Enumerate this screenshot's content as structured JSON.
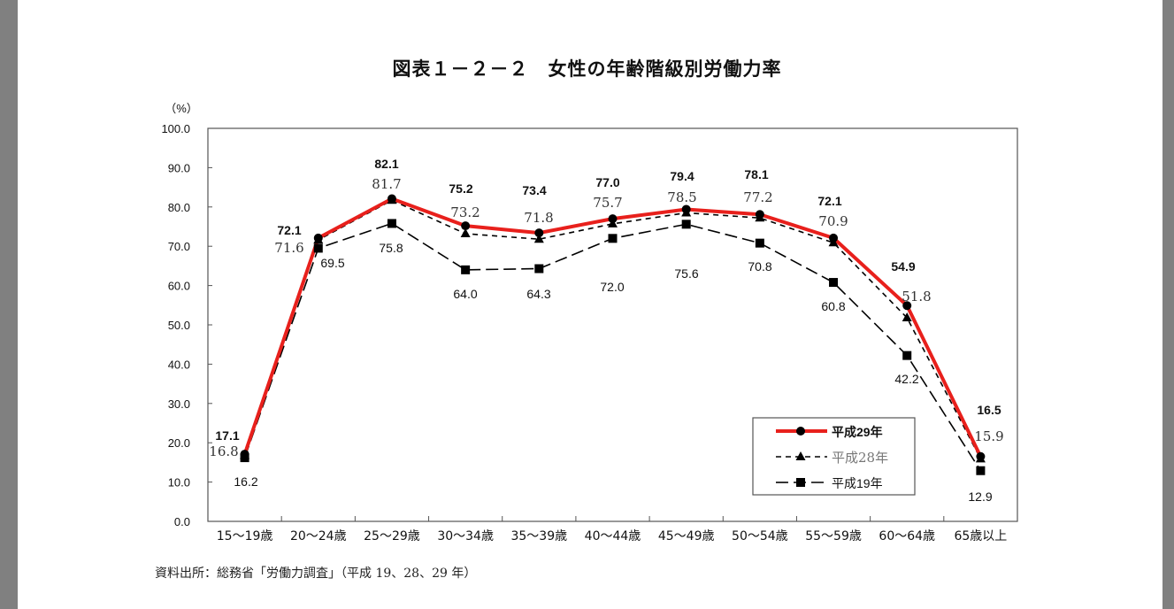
{
  "chart_data": {
    "type": "line",
    "title": "図表１－２－２　女性の年齢階級別労働力率",
    "ylabel": "（%）",
    "xlabel": "",
    "ylim": [
      0,
      100
    ],
    "yticks": [
      "0.0",
      "10.0",
      "20.0",
      "30.0",
      "40.0",
      "50.0",
      "60.0",
      "70.0",
      "80.0",
      "90.0",
      "100.0"
    ],
    "categories": [
      "15～19歳",
      "20～24歳",
      "25～29歳",
      "30～34歳",
      "35～39歳",
      "40～44歳",
      "45～49歳",
      "50～54歳",
      "55～59歳",
      "60～64歳",
      "65歳以上"
    ],
    "series": [
      {
        "name": "平成29年",
        "color": "#e8201c",
        "values": [
          17.1,
          72.1,
          82.1,
          75.2,
          73.4,
          77.0,
          79.4,
          78.1,
          72.1,
          54.9,
          16.5
        ]
      },
      {
        "name": "平成28年",
        "color": "#000000",
        "values": [
          16.8,
          71.6,
          81.7,
          73.2,
          71.8,
          75.7,
          78.5,
          77.2,
          70.9,
          51.8,
          15.9
        ]
      },
      {
        "name": "平成19年",
        "color": "#000000",
        "values": [
          16.2,
          69.5,
          75.8,
          64.0,
          64.3,
          72.0,
          75.6,
          70.8,
          60.8,
          42.2,
          12.9
        ]
      }
    ],
    "legend_position": "bottom-right",
    "grid": false
  },
  "source": "資料出所：総務省「労働力調査」（平成 19、28、29 年）"
}
